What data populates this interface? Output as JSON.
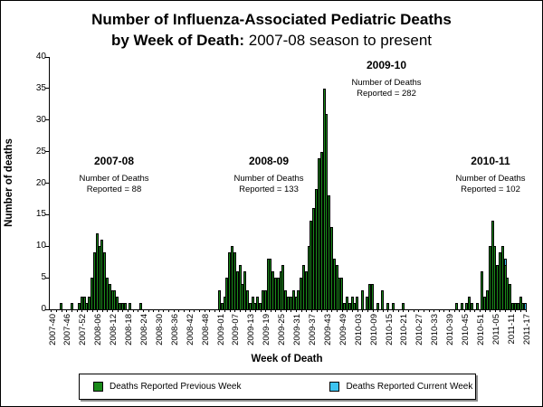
{
  "title": {
    "line1": "Number of Influenza-Associated Pediatric Deaths",
    "line2_bold": "by Week of Death:",
    "line2_rest": " 2007-08 season to present"
  },
  "y_axis": {
    "label": "Number of deaths",
    "ticks": [
      0,
      5,
      10,
      15,
      20,
      25,
      30,
      35,
      40
    ]
  },
  "x_axis": {
    "label": "Week of Death",
    "ticklabels": [
      "2007-40",
      "2007-46",
      "2007-52",
      "2008-06",
      "2008-12",
      "2008-18",
      "2008-24",
      "2008-30",
      "2008-36",
      "2008-42",
      "2008-48",
      "2009-01",
      "2009-07",
      "2009-13",
      "2009-19",
      "2009-25",
      "2009-31",
      "2009-37",
      "2009-43",
      "2009-49",
      "2010-03",
      "2010-09",
      "2010-15",
      "2010-21",
      "2010-27",
      "2010-33",
      "2010-39",
      "2010-45",
      "2010-51",
      "2011-05",
      "2011-11",
      "2011-17"
    ]
  },
  "annotations": [
    {
      "season": "2007-08",
      "line1": "Number of Deaths",
      "line2": "Reported = 88"
    },
    {
      "season": "2008-09",
      "line1": "Number of Deaths",
      "line2": "Reported = 133"
    },
    {
      "season": "2009-10",
      "line1": "Number of Deaths",
      "line2": "Reported = 282"
    },
    {
      "season": "2010-11",
      "line1": "Number of Deaths",
      "line2": "Reported = 102"
    }
  ],
  "legend": {
    "items": [
      {
        "label": "Deaths Reported Previous Week",
        "color": "#1a8a1a"
      },
      {
        "label": "Deaths Reported Current Week",
        "color": "#3cc3f0"
      }
    ]
  },
  "chart_data": {
    "type": "bar",
    "title": "Number of Influenza-Associated Pediatric Deaths by Week of Death: 2007-08 season to present",
    "xlabel": "Week of Death",
    "ylabel": "Number of deaths",
    "ylim": [
      0,
      40
    ],
    "grid": false,
    "legend_position": "bottom",
    "colors": {
      "green": "#1a8a1a",
      "blue": "#3cc3f0"
    },
    "season_totals": {
      "2007-08": 88,
      "2008-09": 133,
      "2009-10": 282,
      "2010-11": 102
    },
    "week_ranges": [
      [
        "2007",
        40,
        52
      ],
      [
        "2008",
        1,
        53
      ],
      [
        "2009",
        1,
        52
      ],
      [
        "2010",
        1,
        52
      ],
      [
        "2011",
        1,
        17
      ]
    ],
    "bars": {
      "2007-44": 1,
      "2007-48": 1,
      "2007-51": 1,
      "2007-52": 2,
      "2008-01": 2,
      "2008-02": 1,
      "2008-03": 2,
      "2008-04": 5,
      "2008-05": 9,
      "2008-06": 12,
      "2008-07": 10,
      "2008-08": 11,
      "2008-09": 9,
      "2008-10": 5,
      "2008-11": 4,
      "2008-12": 3,
      "2008-13": 3,
      "2008-14": 2,
      "2008-15": 1,
      "2008-16": 1,
      "2008-17": 1,
      "2008-19": 1,
      "2008-23": 1,
      "2009-01": 3,
      "2009-02": 1,
      "2009-03": 2,
      "2009-04": 5,
      "2009-05": 9,
      "2009-06": 10,
      "2009-07": 9,
      "2009-08": 6,
      "2009-09": 7,
      "2009-10": 4,
      "2009-11": 6,
      "2009-12": 3,
      "2009-13": 1,
      "2009-14": 2,
      "2009-15": 1,
      "2009-16": 2,
      "2009-17": 1,
      "2009-18": 3,
      "2009-19": 3,
      "2009-20": 8,
      "2009-21": 8,
      "2009-22": 6,
      "2009-23": 5,
      "2009-24": 5,
      "2009-25": 6,
      "2009-26": 7,
      "2009-27": 3,
      "2009-28": 2,
      "2009-29": 2,
      "2009-30": 3,
      "2009-31": 2,
      "2009-32": 3,
      "2009-33": 5,
      "2009-34": 7,
      "2009-35": 6,
      "2009-36": 10,
      "2009-37": 14,
      "2009-38": 16,
      "2009-39": 19,
      "2009-40": 24,
      "2009-41": 25,
      "2009-42": 35,
      "2009-43": 31,
      "2009-44": 18,
      "2009-45": 13,
      "2009-46": 8,
      "2009-47": 7,
      "2009-48": 5,
      "2009-49": 5,
      "2009-50": 1,
      "2009-51": 2,
      "2009-52": 1,
      "2010-01": 2,
      "2010-02": 1,
      "2010-03": 2,
      "2010-05": 3,
      "2010-07": 2,
      "2010-08": 4,
      "2010-09": 4,
      "2010-11": 1,
      "2010-13": 3,
      "2010-15": 1,
      "2010-17": 1,
      "2010-21": 1,
      "2010-42": 1,
      "2010-44": 1,
      "2010-46": 1,
      "2010-47": 2,
      "2010-48": 1,
      "2010-50": 1,
      "2010-52": 6,
      "2011-01": 2,
      "2011-02": 3,
      "2011-03": 10,
      "2011-04": 14,
      "2011-05": 10,
      "2011-06": 7,
      "2011-07": 9,
      "2011-08": 10,
      "2011-09": 7,
      "2011-10": 5,
      "2011-11": 4,
      "2011-12": 1,
      "2011-13": 1,
      "2011-14": 1,
      "2011-15": 2,
      "2011-16": 1
    },
    "current_week_bars": {
      "2011-09": 1,
      "2011-17": 1
    }
  }
}
